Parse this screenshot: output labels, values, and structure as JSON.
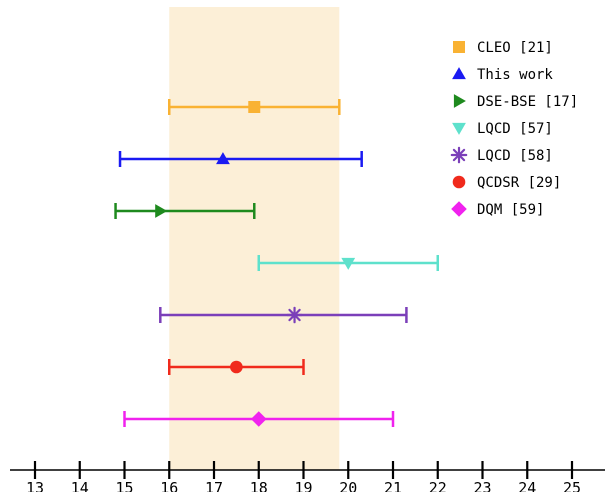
{
  "chart_data": {
    "type": "scatter",
    "title": "",
    "xlabel": "",
    "ylabel": "",
    "xlim": [
      12.5,
      25.7
    ],
    "x_ticks": [
      13,
      14,
      15,
      16,
      17,
      18,
      19,
      20,
      21,
      22,
      23,
      24,
      25
    ],
    "grid": false,
    "legend_position": "top-right",
    "band": {
      "x_min": 16.0,
      "x_max": 19.8,
      "color": "#fcefd7"
    },
    "series": [
      {
        "name": "CLEO [21]",
        "marker": "square",
        "color": "#f9b233",
        "value": 17.9,
        "err_low": 16.0,
        "err_high": 19.8
      },
      {
        "name": "This work",
        "marker": "triangle-up",
        "color": "#1a1af2",
        "value": 17.2,
        "err_low": 14.9,
        "err_high": 20.3
      },
      {
        "name": "DSE-BSE [17]",
        "marker": "triangle-right",
        "color": "#1e8a1e",
        "value": 15.8,
        "err_low": 14.8,
        "err_high": 17.9
      },
      {
        "name": "LQCD [57]",
        "marker": "triangle-down",
        "color": "#5ee1cc",
        "value": 20.0,
        "err_low": 18.0,
        "err_high": 22.0
      },
      {
        "name": "LQCD [58]",
        "marker": "asterisk",
        "color": "#7b3fb9",
        "value": 18.8,
        "err_low": 15.8,
        "err_high": 21.3
      },
      {
        "name": "QCDSR [29]",
        "marker": "circle",
        "color": "#f02a1c",
        "value": 17.5,
        "err_low": 16.0,
        "err_high": 19.0
      },
      {
        "name": "DQM [59]",
        "marker": "diamond",
        "color": "#f022ee",
        "value": 18.0,
        "err_low": 15.0,
        "err_high": 21.0
      }
    ]
  }
}
